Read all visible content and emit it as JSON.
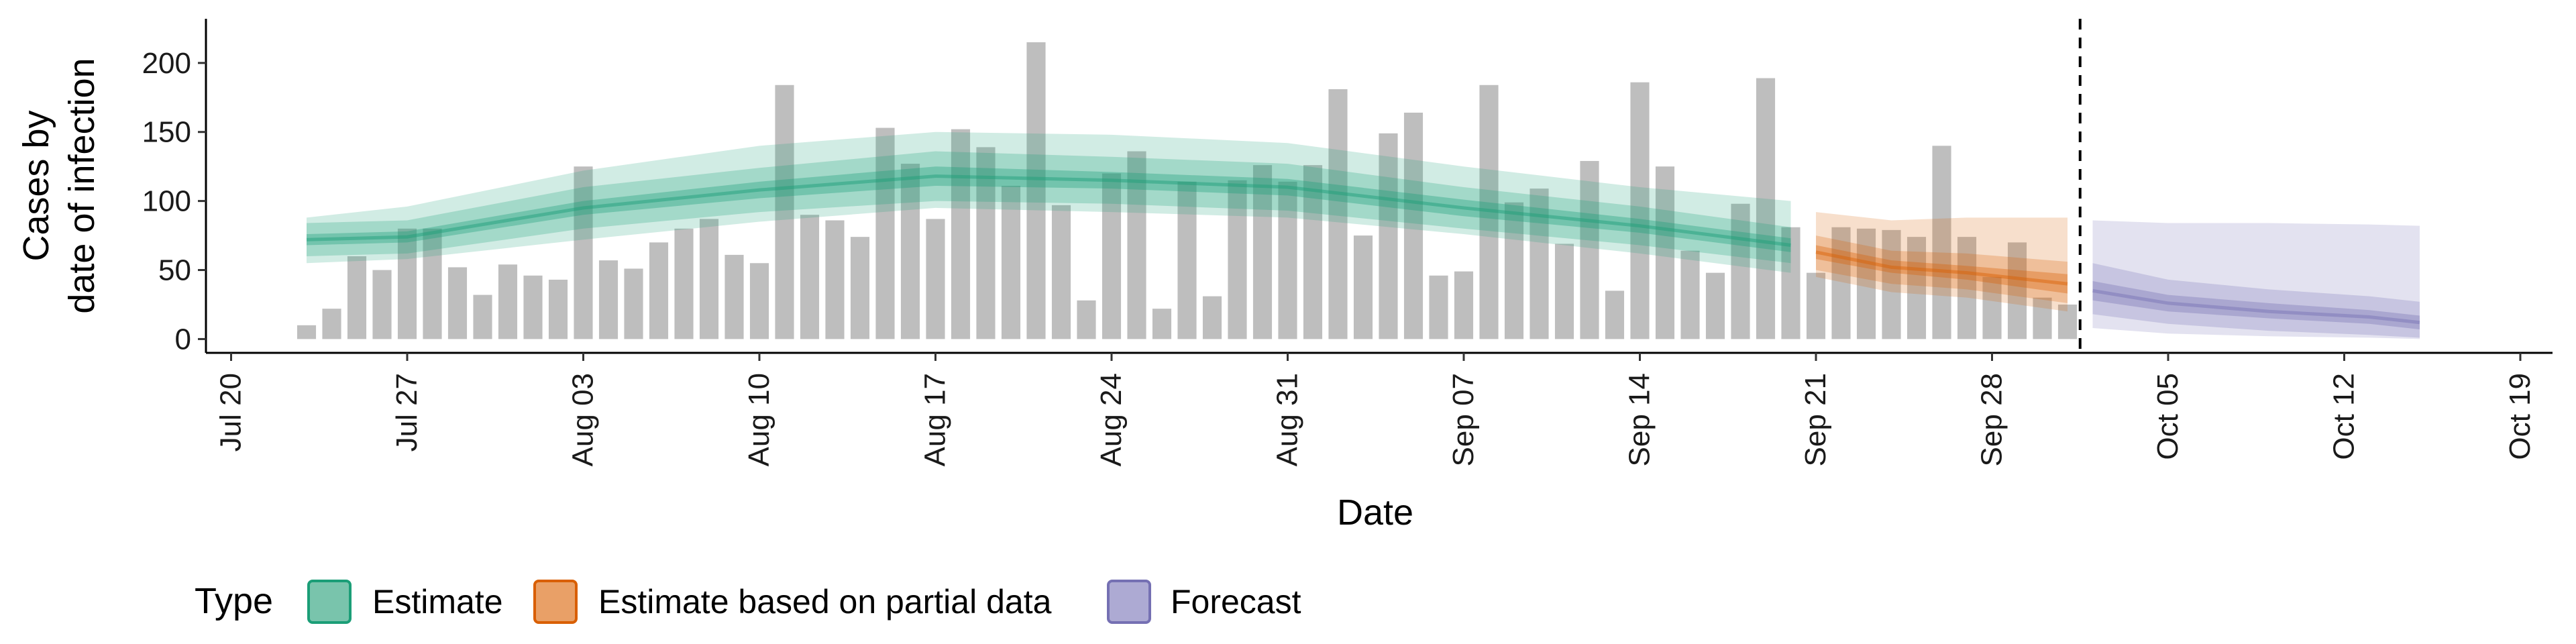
{
  "chart_data": {
    "type": "bar",
    "xlabel": "Date",
    "ylabel_lines": [
      "Cases by",
      "date of infection"
    ],
    "ylim": [
      -10,
      232
    ],
    "xlim_days": [
      -1,
      191
    ],
    "x_axis_origin": "2020-07-20",
    "x_ticks": [
      {
        "day": 0,
        "label": "Jul 20"
      },
      {
        "day": 7,
        "label": "Jul 27"
      },
      {
        "day": 14,
        "label": "Aug 03"
      },
      {
        "day": 21,
        "label": "Aug 10"
      },
      {
        "day": 28,
        "label": "Aug 17"
      },
      {
        "day": 35,
        "label": "Aug 24"
      },
      {
        "day": 42,
        "label": "Aug 31"
      },
      {
        "day": 49,
        "label": "Sep 07"
      },
      {
        "day": 56,
        "label": "Sep 14"
      },
      {
        "day": 63,
        "label": "Sep 21"
      },
      {
        "day": 70,
        "label": "Sep 28"
      },
      {
        "day": 77,
        "label": "Oct 05"
      },
      {
        "day": 84,
        "label": "Oct 12"
      },
      {
        "day": 91,
        "label": "Oct 19"
      }
    ],
    "y_ticks": [
      0,
      50,
      100,
      150,
      200
    ],
    "bars_start_day": 3,
    "bars": [
      10,
      22,
      60,
      50,
      80,
      80,
      52,
      32,
      54,
      46,
      43,
      125,
      57,
      51,
      70,
      80,
      87,
      61,
      55,
      184,
      90,
      86,
      74,
      153,
      127,
      87,
      152,
      139,
      111,
      215,
      97,
      28,
      120,
      136,
      22,
      114,
      31,
      115,
      126,
      114,
      126,
      181,
      75,
      149,
      164,
      46,
      49,
      184,
      99,
      109,
      69,
      129,
      35,
      186,
      125,
      64,
      48,
      98,
      189,
      81,
      48,
      81,
      80,
      79,
      74,
      140,
      74,
      45,
      70,
      30,
      25
    ],
    "bar_color": "#bebebe",
    "forecast_line_day": 73.5,
    "series": [
      {
        "name": "Estimate",
        "color": "#1b9e77",
        "x": [
          3,
          7,
          14,
          21,
          28,
          35,
          42,
          49,
          56,
          62
        ],
        "median": [
          72,
          74,
          95,
          108,
          118,
          115,
          110,
          95,
          82,
          68
        ],
        "inner": [
          [
            68,
            76
          ],
          [
            70,
            78
          ],
          [
            90,
            100
          ],
          [
            102,
            114
          ],
          [
            111,
            125
          ],
          [
            109,
            121
          ],
          [
            104,
            116
          ],
          [
            89,
            101
          ],
          [
            77,
            87
          ],
          [
            63,
            73
          ]
        ],
        "mid": [
          [
            60,
            84
          ],
          [
            62,
            86
          ],
          [
            80,
            110
          ],
          [
            92,
            124
          ],
          [
            100,
            136
          ],
          [
            98,
            132
          ],
          [
            93,
            127
          ],
          [
            80,
            110
          ],
          [
            68,
            96
          ],
          [
            55,
            81
          ]
        ],
        "outer": [
          [
            55,
            88
          ],
          [
            58,
            96
          ],
          [
            72,
            122
          ],
          [
            85,
            140
          ],
          [
            95,
            150
          ],
          [
            92,
            148
          ],
          [
            88,
            142
          ],
          [
            76,
            125
          ],
          [
            62,
            110
          ],
          [
            48,
            100
          ]
        ]
      },
      {
        "name": "Estimate based on partial data",
        "color": "#d95f02",
        "x": [
          63,
          66,
          69,
          73
        ],
        "median": [
          63,
          52,
          48,
          40
        ],
        "inner": [
          [
            58,
            68
          ],
          [
            48,
            57
          ],
          [
            43,
            53
          ],
          [
            33,
            47
          ]
        ],
        "mid": [
          [
            50,
            75
          ],
          [
            40,
            64
          ],
          [
            36,
            62
          ],
          [
            26,
            56
          ]
        ],
        "outer": [
          [
            45,
            92
          ],
          [
            34,
            86
          ],
          [
            30,
            88
          ],
          [
            20,
            88
          ]
        ]
      },
      {
        "name": "Forecast",
        "color": "#7570b3",
        "x": [
          74,
          77,
          81,
          85,
          87
        ],
        "median": [
          35,
          26,
          20,
          16,
          12
        ],
        "inner": [
          [
            28,
            42
          ],
          [
            20,
            32
          ],
          [
            15,
            26
          ],
          [
            11,
            21
          ],
          [
            7,
            17
          ]
        ],
        "mid": [
          [
            18,
            55
          ],
          [
            11,
            43
          ],
          [
            6,
            36
          ],
          [
            3,
            31
          ],
          [
            1,
            27
          ]
        ],
        "outer": [
          [
            8,
            86
          ],
          [
            4,
            84
          ],
          [
            2,
            84
          ],
          [
            1,
            83
          ],
          [
            0,
            82
          ]
        ]
      }
    ]
  },
  "legend": {
    "title": "Type",
    "items": [
      {
        "label": "Estimate",
        "fill": "#79c4ac",
        "stroke": "#1b9e77"
      },
      {
        "label": "Estimate based on partial data",
        "fill": "#e9a067",
        "stroke": "#d95f02"
      },
      {
        "label": "Forecast",
        "fill": "#adaad3",
        "stroke": "#7570b3"
      }
    ]
  }
}
